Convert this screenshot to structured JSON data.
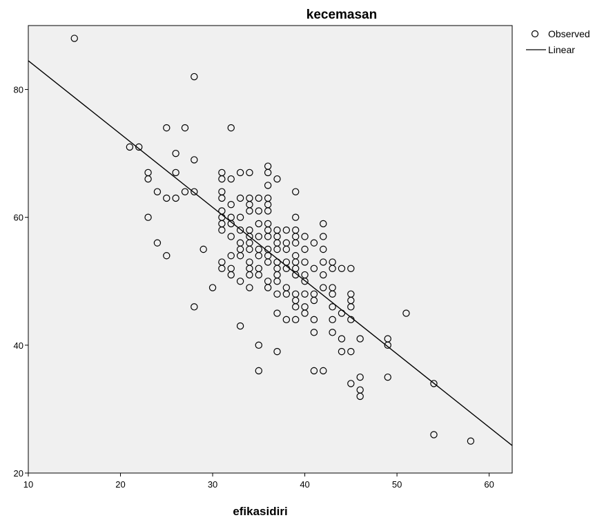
{
  "chart_data": {
    "type": "scatter",
    "title": "kecemasan",
    "xlabel": "efikasidiri",
    "ylabel": "",
    "xlim": [
      10,
      62.5
    ],
    "ylim": [
      20,
      90
    ],
    "x_ticks": [
      10,
      20,
      30,
      40,
      50,
      60
    ],
    "y_ticks": [
      20,
      40,
      60,
      80
    ],
    "grid": false,
    "legend_position": "top-right outside",
    "legend": [
      "Observed",
      "Linear"
    ],
    "colors": {
      "plot_background": "#f0f0f0",
      "marker": "#000000",
      "line": "#000000"
    },
    "series": [
      {
        "name": "Observed",
        "type": "scatter",
        "marker": "open-circle",
        "points": [
          [
            15,
            88
          ],
          [
            28,
            82
          ],
          [
            21,
            71
          ],
          [
            22,
            71
          ],
          [
            25,
            74
          ],
          [
            27,
            74
          ],
          [
            32,
            74
          ],
          [
            26,
            70
          ],
          [
            28,
            69
          ],
          [
            23,
            67
          ],
          [
            23,
            66
          ],
          [
            26,
            67
          ],
          [
            24,
            64
          ],
          [
            27,
            64
          ],
          [
            28,
            64
          ],
          [
            25,
            63
          ],
          [
            26,
            63
          ],
          [
            23,
            60
          ],
          [
            24,
            56
          ],
          [
            25,
            54
          ],
          [
            29,
            55
          ],
          [
            28,
            46
          ],
          [
            30,
            49
          ],
          [
            31,
            67
          ],
          [
            31,
            66
          ],
          [
            31,
            64
          ],
          [
            31,
            63
          ],
          [
            31,
            61
          ],
          [
            31,
            60
          ],
          [
            31,
            59
          ],
          [
            31,
            58
          ],
          [
            31,
            53
          ],
          [
            31,
            52
          ],
          [
            32,
            66
          ],
          [
            32,
            62
          ],
          [
            32,
            60
          ],
          [
            32,
            59
          ],
          [
            32,
            57
          ],
          [
            32,
            54
          ],
          [
            32,
            52
          ],
          [
            32,
            51
          ],
          [
            33,
            67
          ],
          [
            33,
            63
          ],
          [
            33,
            60
          ],
          [
            33,
            58
          ],
          [
            33,
            56
          ],
          [
            33,
            55
          ],
          [
            33,
            54
          ],
          [
            33,
            50
          ],
          [
            33,
            43
          ],
          [
            34,
            67
          ],
          [
            34,
            63
          ],
          [
            34,
            62
          ],
          [
            34,
            61
          ],
          [
            34,
            58
          ],
          [
            34,
            57
          ],
          [
            34,
            56
          ],
          [
            34,
            55
          ],
          [
            34,
            53
          ],
          [
            34,
            52
          ],
          [
            34,
            51
          ],
          [
            34,
            49
          ],
          [
            35,
            63
          ],
          [
            35,
            61
          ],
          [
            35,
            59
          ],
          [
            35,
            57
          ],
          [
            35,
            55
          ],
          [
            35,
            54
          ],
          [
            35,
            52
          ],
          [
            35,
            51
          ],
          [
            35,
            40
          ],
          [
            35,
            36
          ],
          [
            36,
            68
          ],
          [
            36,
            67
          ],
          [
            36,
            65
          ],
          [
            36,
            63
          ],
          [
            36,
            62
          ],
          [
            36,
            61
          ],
          [
            36,
            59
          ],
          [
            36,
            58
          ],
          [
            36,
            57
          ],
          [
            36,
            55
          ],
          [
            36,
            54
          ],
          [
            36,
            53
          ],
          [
            36,
            50
          ],
          [
            36,
            49
          ],
          [
            37,
            66
          ],
          [
            37,
            58
          ],
          [
            37,
            57
          ],
          [
            37,
            56
          ],
          [
            37,
            55
          ],
          [
            37,
            53
          ],
          [
            37,
            52
          ],
          [
            37,
            51
          ],
          [
            37,
            50
          ],
          [
            37,
            48
          ],
          [
            37,
            45
          ],
          [
            37,
            39
          ],
          [
            38,
            58
          ],
          [
            38,
            56
          ],
          [
            38,
            55
          ],
          [
            38,
            53
          ],
          [
            38,
            52
          ],
          [
            38,
            49
          ],
          [
            38,
            48
          ],
          [
            38,
            44
          ],
          [
            39,
            64
          ],
          [
            39,
            60
          ],
          [
            39,
            58
          ],
          [
            39,
            57
          ],
          [
            39,
            56
          ],
          [
            39,
            54
          ],
          [
            39,
            53
          ],
          [
            39,
            52
          ],
          [
            39,
            51
          ],
          [
            39,
            48
          ],
          [
            39,
            47
          ],
          [
            39,
            46
          ],
          [
            39,
            44
          ],
          [
            40,
            57
          ],
          [
            40,
            55
          ],
          [
            40,
            53
          ],
          [
            40,
            51
          ],
          [
            40,
            50
          ],
          [
            40,
            48
          ],
          [
            40,
            46
          ],
          [
            40,
            45
          ],
          [
            41,
            56
          ],
          [
            41,
            52
          ],
          [
            41,
            48
          ],
          [
            41,
            47
          ],
          [
            41,
            44
          ],
          [
            41,
            42
          ],
          [
            41,
            36
          ],
          [
            42,
            59
          ],
          [
            42,
            57
          ],
          [
            42,
            55
          ],
          [
            42,
            53
          ],
          [
            42,
            51
          ],
          [
            42,
            49
          ],
          [
            42,
            36
          ],
          [
            43,
            53
          ],
          [
            43,
            52
          ],
          [
            43,
            49
          ],
          [
            43,
            48
          ],
          [
            43,
            46
          ],
          [
            43,
            44
          ],
          [
            43,
            42
          ],
          [
            44,
            52
          ],
          [
            44,
            45
          ],
          [
            44,
            41
          ],
          [
            44,
            39
          ],
          [
            45,
            52
          ],
          [
            45,
            48
          ],
          [
            45,
            47
          ],
          [
            45,
            46
          ],
          [
            45,
            44
          ],
          [
            45,
            39
          ],
          [
            45,
            34
          ],
          [
            46,
            41
          ],
          [
            46,
            35
          ],
          [
            46,
            33
          ],
          [
            46,
            32
          ],
          [
            49,
            41
          ],
          [
            49,
            40
          ],
          [
            49,
            35
          ],
          [
            51,
            45
          ],
          [
            54,
            34
          ],
          [
            54,
            26
          ],
          [
            58,
            25
          ]
        ]
      },
      {
        "name": "Linear",
        "type": "line",
        "points": [
          [
            10,
            84.5
          ],
          [
            62.5,
            24.3
          ]
        ]
      }
    ]
  }
}
